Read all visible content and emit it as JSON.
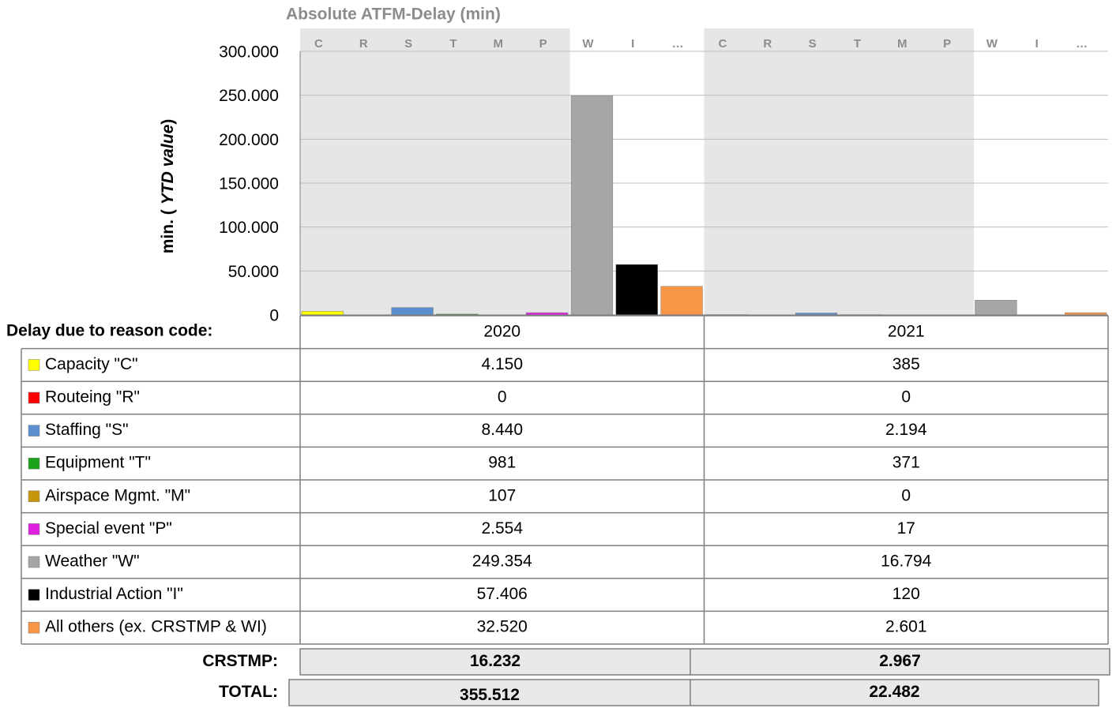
{
  "chart_data": {
    "type": "bar",
    "title": "Absolute ATFM-Delay (min)",
    "y_label": [
      "min.  (",
      "YTD value",
      ")"
    ],
    "table_header": "Delay due to reason code:",
    "groups": [
      "2020",
      "2021"
    ],
    "ylim": [
      0,
      300000
    ],
    "yticks": [
      0,
      {
        "value": 50000,
        "label": "50.000"
      },
      {
        "value": 100000,
        "label": "100.000"
      },
      {
        "value": 150000,
        "label": "150.000"
      },
      {
        "value": 200000,
        "label": "200.000"
      },
      {
        "value": 250000,
        "label": "250.000"
      },
      {
        "value": 300000,
        "label": "300.000"
      }
    ],
    "grid": true,
    "series": [
      {
        "name": "Capacity \"C\"",
        "code": "C",
        "color": "#ffff00",
        "shaded": true,
        "values": [
          4150,
          385
        ],
        "value_labels": [
          "4.150",
          "385"
        ]
      },
      {
        "name": "Routeing \"R\"",
        "code": "R",
        "color": "#ff0000",
        "shaded": true,
        "values": [
          0,
          0
        ],
        "value_labels": [
          "0",
          "0"
        ]
      },
      {
        "name": "Staffing \"S\"",
        "code": "S",
        "color": "#5b8fd0",
        "shaded": true,
        "values": [
          8440,
          2194
        ],
        "value_labels": [
          "8.440",
          "2.194"
        ]
      },
      {
        "name": "Equipment \"T\"",
        "code": "T",
        "color": "#1aa31a",
        "shaded": true,
        "values": [
          981,
          371
        ],
        "value_labels": [
          "981",
          "371"
        ]
      },
      {
        "name": "Airspace Mgmt. \"M\"",
        "code": "M",
        "color": "#c8960a",
        "shaded": true,
        "values": [
          107,
          0
        ],
        "value_labels": [
          "107",
          "0"
        ]
      },
      {
        "name": "Special event \"P\"",
        "code": "P",
        "color": "#e020e0",
        "shaded": true,
        "values": [
          2554,
          17
        ],
        "value_labels": [
          "2.554",
          "17"
        ]
      },
      {
        "name": "Weather \"W\"",
        "code": "W",
        "color": "#a6a6a6",
        "shaded": false,
        "values": [
          249354,
          16794
        ],
        "value_labels": [
          "249.354",
          "16.794"
        ]
      },
      {
        "name": "Industrial Action \"I\"",
        "code": "I",
        "color": "#000000",
        "shaded": false,
        "values": [
          57406,
          120
        ],
        "value_labels": [
          "57.406",
          "120"
        ]
      },
      {
        "name": "All others (ex. CRSTMP & WI)",
        "code": "…",
        "color": "#f79646",
        "shaded": false,
        "values": [
          32520,
          2601
        ],
        "value_labels": [
          "32.520",
          "2.601"
        ]
      }
    ],
    "totals": [
      {
        "name": "CRSTMP:",
        "values": [
          16232,
          2967
        ],
        "value_labels": [
          "16.232",
          "2.967"
        ]
      },
      {
        "name": "TOTAL:",
        "values": [
          355512,
          22482
        ],
        "value_labels": [
          "355.512",
          "22.482"
        ]
      }
    ]
  }
}
